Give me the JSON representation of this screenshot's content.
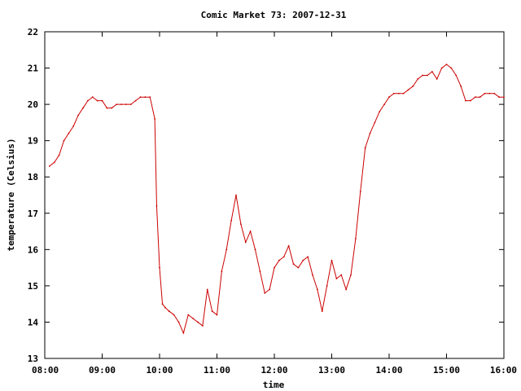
{
  "chart_data": {
    "type": "line",
    "title": "Comic Market 73: 2007-12-31",
    "xlabel": "time",
    "ylabel": "temperature (Celsius)",
    "xlim": [
      "08:00",
      "16:00"
    ],
    "ylim": [
      13,
      22
    ],
    "x_ticks": [
      "08:00",
      "09:00",
      "10:00",
      "11:00",
      "12:00",
      "13:00",
      "14:00",
      "15:00",
      "16:00"
    ],
    "y_ticks": [
      "13",
      "14",
      "15",
      "16",
      "17",
      "18",
      "19",
      "20",
      "21",
      "22"
    ],
    "grid": false,
    "legend": "none",
    "colors": {
      "series": "#cc0000",
      "axes": "#000000",
      "background": "#ffffff"
    },
    "series": [
      {
        "x": [
          "08:05",
          "08:10",
          "08:15",
          "08:20",
          "08:25",
          "08:30",
          "08:35",
          "08:40",
          "08:45",
          "08:50",
          "08:55",
          "09:00",
          "09:05",
          "09:10",
          "09:15",
          "09:20",
          "09:25",
          "09:30",
          "09:35",
          "09:40",
          "09:45",
          "09:50",
          "09:55",
          "09:57",
          "10:00",
          "10:03",
          "10:06",
          "10:10",
          "10:15",
          "10:20",
          "10:25",
          "10:30",
          "10:35",
          "10:40",
          "10:45",
          "10:50",
          "10:55",
          "11:00",
          "11:05",
          "11:10",
          "11:15",
          "11:20",
          "11:25",
          "11:30",
          "11:35",
          "11:40",
          "11:45",
          "11:50",
          "11:55",
          "12:00",
          "12:05",
          "12:10",
          "12:15",
          "12:20",
          "12:25",
          "12:30",
          "12:35",
          "12:40",
          "12:45",
          "12:50",
          "12:55",
          "13:00",
          "13:05",
          "13:10",
          "13:15",
          "13:20",
          "13:25",
          "13:30",
          "13:35",
          "13:40",
          "13:45",
          "13:50",
          "13:55",
          "14:00",
          "14:05",
          "14:10",
          "14:15",
          "14:20",
          "14:25",
          "14:30",
          "14:35",
          "14:40",
          "14:45",
          "14:50",
          "14:55",
          "15:00",
          "15:05",
          "15:10",
          "15:15",
          "15:20",
          "15:25",
          "15:30",
          "15:35",
          "15:40",
          "15:45",
          "15:50",
          "15:55",
          "16:00"
        ],
        "values": [
          18.3,
          18.4,
          18.6,
          19.0,
          19.2,
          19.4,
          19.7,
          19.9,
          20.1,
          20.2,
          20.1,
          20.1,
          19.9,
          19.9,
          20.0,
          20.0,
          20.0,
          20.0,
          20.1,
          20.2,
          20.2,
          20.2,
          19.6,
          17.2,
          15.5,
          14.5,
          14.4,
          14.3,
          14.2,
          14.0,
          13.7,
          14.2,
          14.1,
          14.0,
          13.9,
          14.9,
          14.3,
          14.2,
          15.4,
          16.0,
          16.8,
          17.5,
          16.7,
          16.2,
          16.5,
          16.0,
          15.4,
          14.8,
          14.9,
          15.5,
          15.7,
          15.8,
          16.1,
          15.6,
          15.5,
          15.7,
          15.8,
          15.3,
          14.9,
          14.3,
          15.0,
          15.7,
          15.2,
          15.3,
          14.9,
          15.3,
          16.3,
          17.6,
          18.8,
          19.2,
          19.5,
          19.8,
          20.0,
          20.2,
          20.3,
          20.3,
          20.3,
          20.4,
          20.5,
          20.7,
          20.8,
          20.8,
          20.9,
          20.7,
          21.0,
          21.1,
          21.0,
          20.8,
          20.5,
          20.1,
          20.1,
          20.2,
          20.2,
          20.3,
          20.3,
          20.3,
          20.2,
          20.2
        ]
      }
    ]
  }
}
